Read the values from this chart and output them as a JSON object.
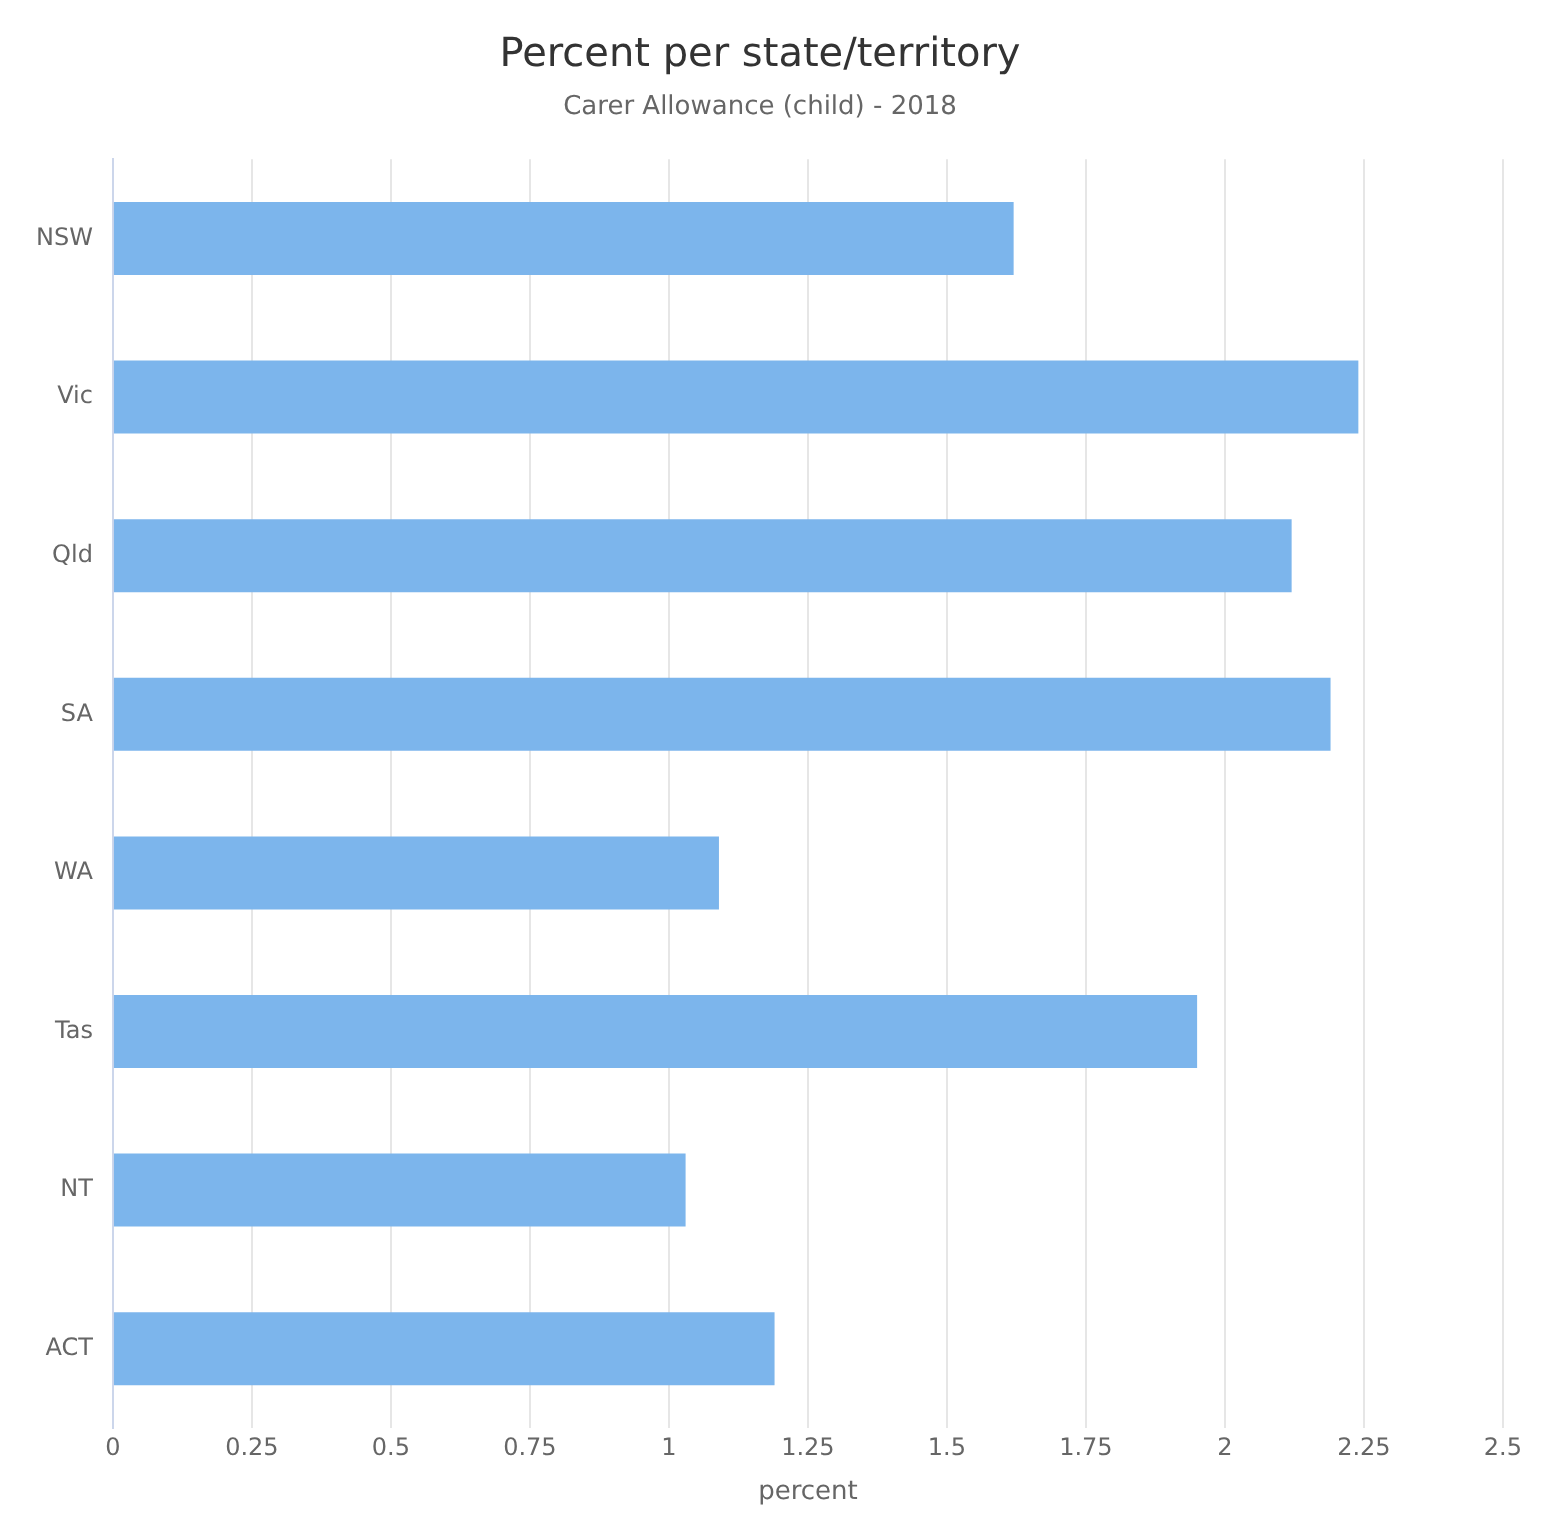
{
  "chart_data": {
    "type": "bar",
    "orientation": "horizontal",
    "title": "Percent per state/territory",
    "subtitle": "Carer Allowance (child) - 2018",
    "xlabel": "percent",
    "categories": [
      "NSW",
      "Vic",
      "Qld",
      "SA",
      "WA",
      "Tas",
      "NT",
      "ACT"
    ],
    "values": [
      1.62,
      2.24,
      2.12,
      2.19,
      1.09,
      1.95,
      1.03,
      1.19
    ],
    "color": "#7cb5ec",
    "xlim": [
      0,
      2.5
    ],
    "xticks": [
      0,
      0.25,
      0.5,
      0.75,
      1,
      1.25,
      1.5,
      1.75,
      2,
      2.25,
      2.5
    ],
    "grid": "x",
    "legend": false
  }
}
